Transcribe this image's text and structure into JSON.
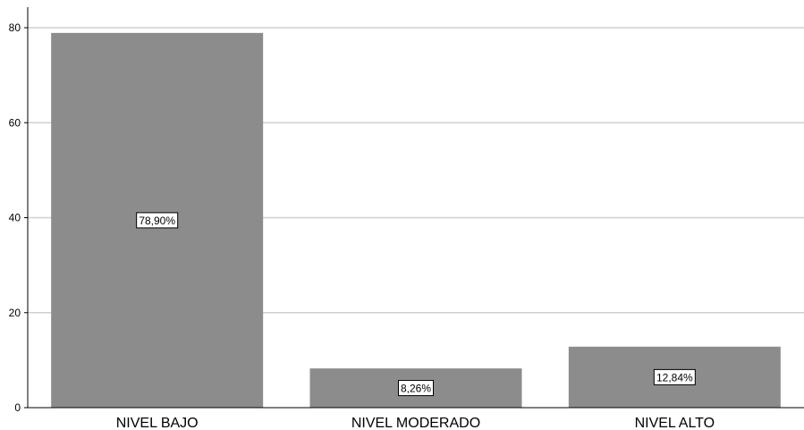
{
  "chart_data": {
    "type": "bar",
    "title": "",
    "xlabel": "",
    "ylabel": "",
    "categories": [
      "NIVEL BAJO",
      "NIVEL MODERADO",
      "NIVEL ALTO"
    ],
    "values": [
      78.9,
      8.26,
      12.84
    ],
    "data_labels": [
      "78,90%",
      "8,26%",
      "12,84%"
    ],
    "ylim": [
      0,
      84
    ],
    "yticks": [
      0,
      20,
      40,
      60,
      80
    ],
    "ytick_labels": [
      "0",
      "20",
      "40",
      "60",
      "80"
    ],
    "grid": true,
    "legend": "none",
    "colors": {
      "bar": "#8c8c8c",
      "gridline": "#d0d0d0",
      "axis": "#000000",
      "label_box_fill": "#ffffff",
      "label_box_stroke": "#000000"
    }
  }
}
